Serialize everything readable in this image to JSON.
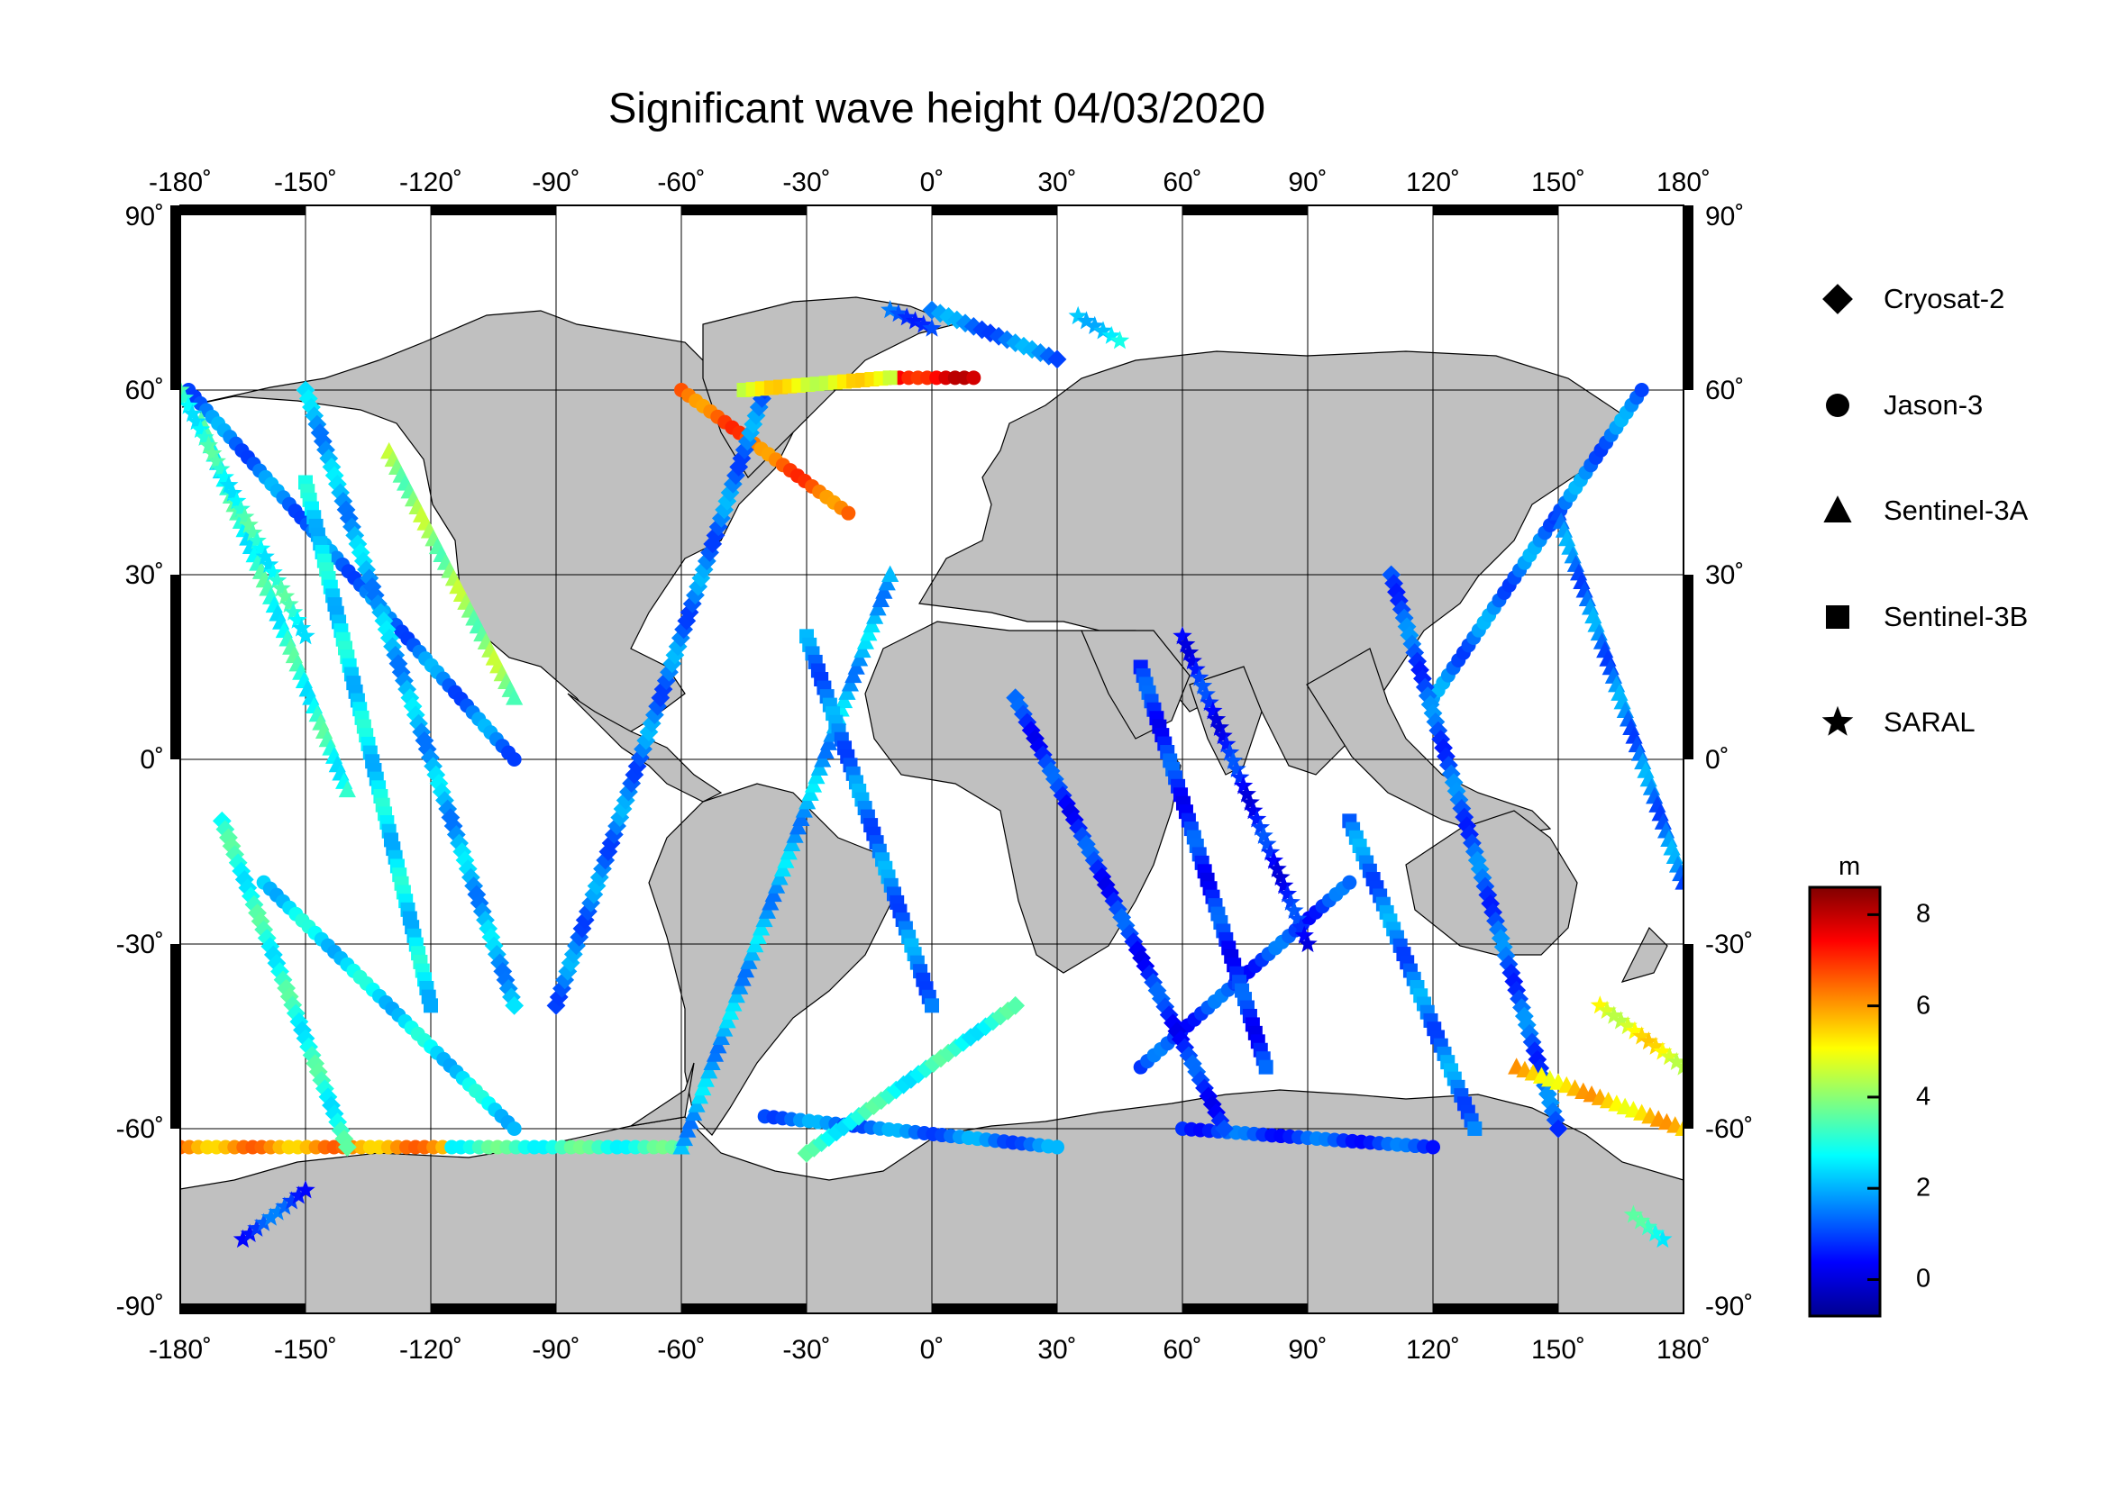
{
  "title": "Significant wave height 04/03/2020",
  "map": {
    "projection": "equirectangular",
    "lon_range": [
      -180,
      180
    ],
    "lat_range": [
      -90,
      90
    ],
    "lon_ticks": [
      -180,
      -150,
      -120,
      -90,
      -60,
      -30,
      0,
      30,
      60,
      90,
      120,
      150,
      180
    ],
    "lat_ticks": [
      90,
      60,
      30,
      0,
      -30,
      -60,
      -90
    ],
    "lon_tick_labels": [
      "-180˚",
      "-150˚",
      "-120˚",
      "-90˚",
      "-60˚",
      "-30˚",
      "0˚",
      "30˚",
      "60˚",
      "90˚",
      "120˚",
      "150˚",
      "180˚"
    ],
    "lat_tick_labels": [
      "90˚",
      "60˚",
      "30˚",
      "0˚",
      "-30˚",
      "-60˚",
      "-90˚"
    ],
    "grid": true,
    "land_color": "#c0c0c0",
    "ocean_color": "#ffffff"
  },
  "legend": {
    "placement": "right",
    "items": [
      {
        "label": "Cryosat-2",
        "marker": "diamond"
      },
      {
        "label": "Jason-3",
        "marker": "circle"
      },
      {
        "label": "Sentinel-3A",
        "marker": "triangle"
      },
      {
        "label": "Sentinel-3B",
        "marker": "square"
      },
      {
        "label": "SARAL",
        "marker": "star"
      }
    ]
  },
  "colorbar": {
    "unit": "m",
    "min": -0.8,
    "max": 8.6,
    "ticks": [
      0,
      2,
      4,
      6,
      8
    ],
    "tick_labels": [
      "0",
      "2",
      "4",
      "6",
      "8"
    ],
    "colormap": "jet"
  },
  "chart_data": {
    "type": "scatter",
    "title": "Significant wave height 04/03/2020",
    "xlabel": "",
    "ylabel": "",
    "xlim": [
      -180,
      180
    ],
    "ylim": [
      -90,
      90
    ],
    "note_series": "satellite ground tracks, lon/lat in degrees, value = significant wave height (m)",
    "series": [
      {
        "name": "Jason-3",
        "marker": "circle",
        "tracks": [
          {
            "from": [
              -180,
              -63
            ],
            "to": [
              -115,
              -63
            ],
            "v": 6.0
          },
          {
            "from": [
              -115,
              -63
            ],
            "to": [
              -60,
              -63
            ],
            "v": 3.2
          },
          {
            "from": [
              -178,
              60
            ],
            "to": [
              -100,
              0
            ],
            "v": 1.5
          },
          {
            "from": [
              -40,
              -58
            ],
            "to": [
              30,
              -63
            ],
            "v": 1.5
          },
          {
            "from": [
              60,
              -60
            ],
            "to": [
              120,
              -63
            ],
            "v": 1.0
          },
          {
            "from": [
              -60,
              60
            ],
            "to": [
              -20,
              40
            ],
            "v": 6.5
          },
          {
            "from": [
              -160,
              -20
            ],
            "to": [
              -100,
              -60
            ],
            "v": 2.5
          },
          {
            "from": [
              120,
              10
            ],
            "to": [
              170,
              60
            ],
            "v": 1.5
          },
          {
            "from": [
              50,
              -50
            ],
            "to": [
              100,
              -20
            ],
            "v": 1.0
          },
          {
            "from": [
              -10,
              62
            ],
            "to": [
              10,
              62
            ],
            "v": 7.5
          }
        ]
      },
      {
        "name": "Cryosat-2",
        "marker": "diamond",
        "tracks": [
          {
            "from": [
              -90,
              -40
            ],
            "to": [
              -40,
              60
            ],
            "v": 1.5
          },
          {
            "from": [
              -150,
              60
            ],
            "to": [
              -100,
              -40
            ],
            "v": 2.0
          },
          {
            "from": [
              20,
              10
            ],
            "to": [
              70,
              -60
            ],
            "v": 0.8
          },
          {
            "from": [
              110,
              30
            ],
            "to": [
              150,
              -60
            ],
            "v": 1.2
          },
          {
            "from": [
              -30,
              -64
            ],
            "to": [
              20,
              -40
            ],
            "v": 3.0
          },
          {
            "from": [
              0,
              73
            ],
            "to": [
              30,
              65
            ],
            "v": 1.5
          },
          {
            "from": [
              -170,
              -10
            ],
            "to": [
              -140,
              -63
            ],
            "v": 3.0
          }
        ]
      },
      {
        "name": "Sentinel-3A",
        "marker": "triangle",
        "tracks": [
          {
            "from": [
              -175,
              55
            ],
            "to": [
              -140,
              -5
            ],
            "v": 3.0
          },
          {
            "from": [
              -60,
              -63
            ],
            "to": [
              -10,
              30
            ],
            "v": 2.0
          },
          {
            "from": [
              150,
              40
            ],
            "to": [
              180,
              -20
            ],
            "v": 1.5
          },
          {
            "from": [
              140,
              -50
            ],
            "to": [
              180,
              -60
            ],
            "v": 5.5
          },
          {
            "from": [
              -130,
              50
            ],
            "to": [
              -100,
              10
            ],
            "v": 4.0
          }
        ]
      },
      {
        "name": "Sentinel-3B",
        "marker": "square",
        "tracks": [
          {
            "from": [
              -150,
              45
            ],
            "to": [
              -120,
              -40
            ],
            "v": 2.5
          },
          {
            "from": [
              50,
              15
            ],
            "to": [
              80,
              -50
            ],
            "v": 0.8
          },
          {
            "from": [
              -30,
              20
            ],
            "to": [
              0,
              -40
            ],
            "v": 1.5
          },
          {
            "from": [
              100,
              -10
            ],
            "to": [
              130,
              -60
            ],
            "v": 1.5
          },
          {
            "from": [
              -45,
              60
            ],
            "to": [
              -10,
              62
            ],
            "v": 5.0
          }
        ]
      },
      {
        "name": "SARAL",
        "marker": "star",
        "tracks": [
          {
            "from": [
              -165,
              -78
            ],
            "to": [
              -150,
              -70
            ],
            "v": 1.0
          },
          {
            "from": [
              -10,
              73
            ],
            "to": [
              0,
              70
            ],
            "v": 1.2
          },
          {
            "from": [
              35,
              72
            ],
            "to": [
              45,
              68
            ],
            "v": 2.5
          },
          {
            "from": [
              175,
              -78
            ],
            "to": [
              168,
              -74
            ],
            "v": 3.0
          },
          {
            "from": [
              -180,
              60
            ],
            "to": [
              -150,
              20
            ],
            "v": 3.0
          },
          {
            "from": [
              60,
              20
            ],
            "to": [
              90,
              -30
            ],
            "v": 0.6
          },
          {
            "from": [
              160,
              -40
            ],
            "to": [
              180,
              -50
            ],
            "v": 5.0
          }
        ]
      }
    ]
  }
}
